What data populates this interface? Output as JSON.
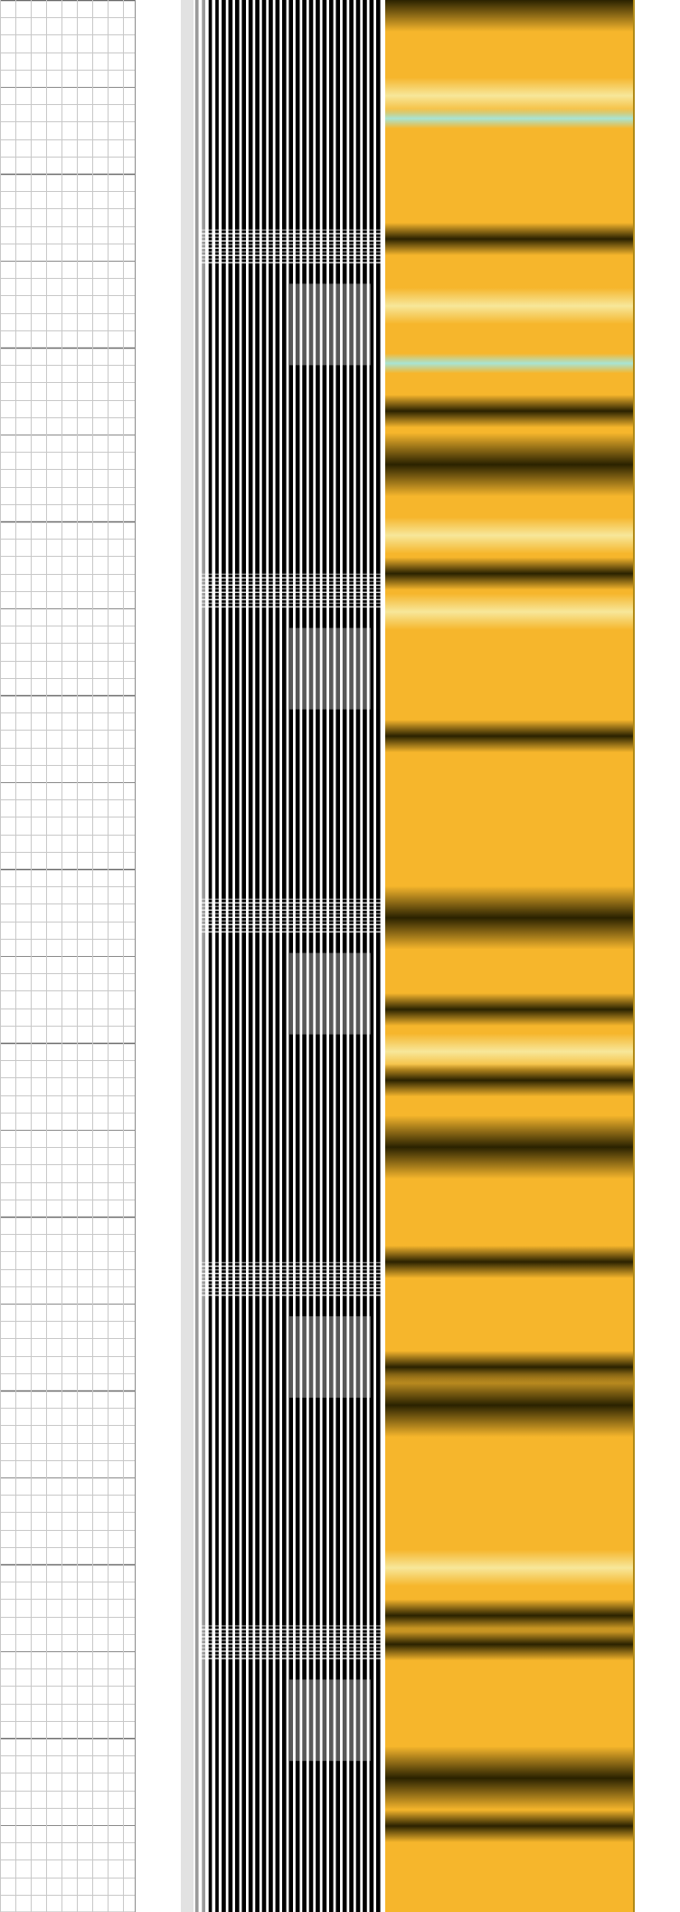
{
  "colors": {
    "background": "#ffffff",
    "grid_minor": "#c8c8c8",
    "grid_major": "#8a8a8a",
    "wave_fill": "#000000",
    "image_base": "#f6b62c",
    "image_dark": "#2a2200",
    "image_light": "#f7e79a",
    "image_cyan": "#a8e4d4",
    "image_edge": "#b08a18"
  },
  "waveform": {
    "trace_count": 28,
    "event_depths": [
      0.12,
      0.3,
      0.47,
      0.66,
      0.85
    ]
  },
  "image_log": {
    "dark_bands": [
      0.0,
      0.125,
      0.215,
      0.243,
      0.3,
      0.385,
      0.48,
      0.528,
      0.565,
      0.6,
      0.66,
      0.715,
      0.735,
      0.845,
      0.86,
      0.93,
      0.955
    ],
    "light_bands": [
      0.05,
      0.16,
      0.28,
      0.32,
      0.55,
      0.82
    ],
    "cyan_bands": [
      0.062,
      0.19
    ]
  }
}
